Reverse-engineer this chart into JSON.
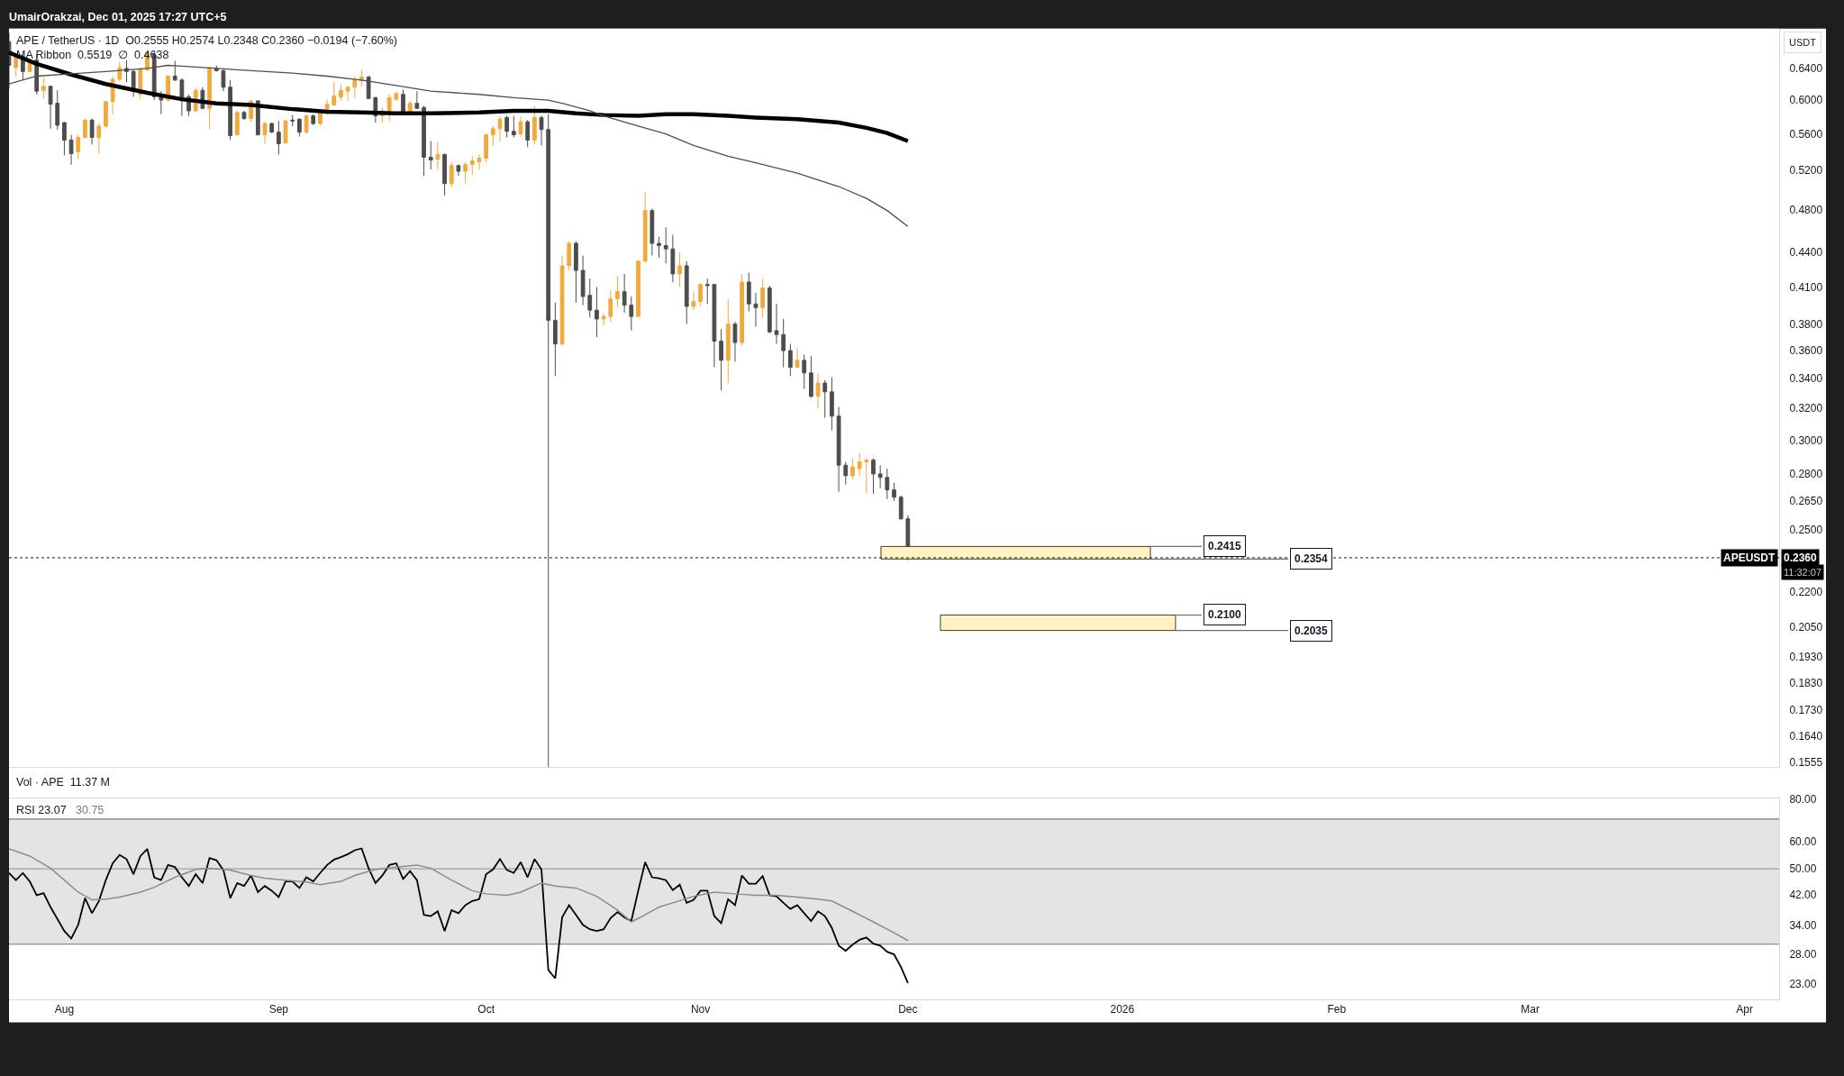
{
  "chart_data": [
    {
      "type": "candlestick",
      "title": "APE / TetherUS · 1D  O0.2555 H0.2574 L0.2348 C0.2360 −0.0194 (−7.60%)",
      "subtitle": "MA Ribbon  0.5519  ∅  0.4638",
      "ylabel": "USDT",
      "annotations": [
        "UmairOrakzai, Dec 01, 2025 17:27 UTC+5",
        "Vol · APE  11.37 M",
        {
          "text": "APEUSDT",
          "y": 0.236
        },
        "11:32:07"
      ],
      "x": [
        "2025-07-24",
        "2025-07-25",
        "2025-07-26",
        "2025-07-27",
        "2025-07-28",
        "2025-07-29",
        "2025-07-30",
        "2025-07-31",
        "2025-08-01",
        "2025-08-02",
        "2025-08-03",
        "2025-08-04",
        "2025-08-05",
        "2025-08-06",
        "2025-08-07",
        "2025-08-08",
        "2025-08-09",
        "2025-08-10",
        "2025-08-11",
        "2025-08-12",
        "2025-08-13",
        "2025-08-14",
        "2025-08-15",
        "2025-08-16",
        "2025-08-17",
        "2025-08-18",
        "2025-08-19",
        "2025-08-20",
        "2025-08-21",
        "2025-08-22",
        "2025-08-23",
        "2025-08-24",
        "2025-08-25",
        "2025-08-26",
        "2025-08-27",
        "2025-08-28",
        "2025-08-29",
        "2025-08-30",
        "2025-08-31",
        "2025-09-01",
        "2025-09-02",
        "2025-09-03",
        "2025-09-04",
        "2025-09-05",
        "2025-09-06",
        "2025-09-07",
        "2025-09-08",
        "2025-09-09",
        "2025-09-10",
        "2025-09-11",
        "2025-09-12",
        "2025-09-13",
        "2025-09-14",
        "2025-09-15",
        "2025-09-16",
        "2025-09-17",
        "2025-09-18",
        "2025-09-19",
        "2025-09-20",
        "2025-09-21",
        "2025-09-22",
        "2025-09-23",
        "2025-09-24",
        "2025-09-25",
        "2025-09-26",
        "2025-09-27",
        "2025-09-28",
        "2025-09-29",
        "2025-09-30",
        "2025-10-01",
        "2025-10-02",
        "2025-10-03",
        "2025-10-04",
        "2025-10-05",
        "2025-10-06",
        "2025-10-07",
        "2025-10-08",
        "2025-10-09",
        "2025-10-10",
        "2025-10-11",
        "2025-10-12",
        "2025-10-13",
        "2025-10-14",
        "2025-10-15",
        "2025-10-16",
        "2025-10-17",
        "2025-10-18",
        "2025-10-19",
        "2025-10-20",
        "2025-10-21",
        "2025-10-22",
        "2025-10-23",
        "2025-10-24",
        "2025-10-25",
        "2025-10-26",
        "2025-10-27",
        "2025-10-28",
        "2025-10-29",
        "2025-10-30",
        "2025-10-31",
        "2025-11-01",
        "2025-11-02",
        "2025-11-03",
        "2025-11-04",
        "2025-11-05",
        "2025-11-06",
        "2025-11-07",
        "2025-11-08",
        "2025-11-09",
        "2025-11-10",
        "2025-11-11",
        "2025-11-12",
        "2025-11-13",
        "2025-11-14",
        "2025-11-15",
        "2025-11-16",
        "2025-11-17",
        "2025-11-18",
        "2025-11-19",
        "2025-11-20",
        "2025-11-21",
        "2025-11-22",
        "2025-11-23",
        "2025-11-24",
        "2025-11-25",
        "2025-11-26",
        "2025-11-27",
        "2025-11-28",
        "2025-11-29",
        "2025-11-30",
        "2025-12-01"
      ],
      "ohlc": [
        [
          0.676,
          0.688,
          0.614,
          0.644
        ],
        [
          0.641,
          0.658,
          0.629,
          0.655
        ],
        [
          0.651,
          0.658,
          0.625,
          0.636
        ],
        [
          0.636,
          0.651,
          0.635,
          0.648
        ],
        [
          0.651,
          0.658,
          0.607,
          0.611
        ],
        [
          0.612,
          0.628,
          0.602,
          0.617
        ],
        [
          0.617,
          0.618,
          0.566,
          0.595
        ],
        [
          0.596,
          0.612,
          0.565,
          0.57
        ],
        [
          0.573,
          0.574,
          0.536,
          0.553
        ],
        [
          0.553,
          0.559,
          0.526,
          0.538
        ],
        [
          0.54,
          0.559,
          0.532,
          0.556
        ],
        [
          0.556,
          0.578,
          0.555,
          0.576
        ],
        [
          0.576,
          0.578,
          0.548,
          0.556
        ],
        [
          0.556,
          0.572,
          0.538,
          0.569
        ],
        [
          0.569,
          0.599,
          0.567,
          0.598
        ],
        [
          0.598,
          0.63,
          0.583,
          0.626
        ],
        [
          0.626,
          0.649,
          0.623,
          0.641
        ],
        [
          0.64,
          0.651,
          0.622,
          0.636
        ],
        [
          0.636,
          0.638,
          0.604,
          0.611
        ],
        [
          0.607,
          0.641,
          0.601,
          0.639
        ],
        [
          0.638,
          0.662,
          0.637,
          0.661
        ],
        [
          0.658,
          0.662,
          0.6,
          0.604
        ],
        [
          0.604,
          0.611,
          0.583,
          0.6
        ],
        [
          0.6,
          0.631,
          0.598,
          0.63
        ],
        [
          0.63,
          0.65,
          0.624,
          0.625
        ],
        [
          0.625,
          0.627,
          0.581,
          0.603
        ],
        [
          0.604,
          0.607,
          0.581,
          0.587
        ],
        [
          0.587,
          0.615,
          0.586,
          0.612
        ],
        [
          0.612,
          0.616,
          0.589,
          0.59
        ],
        [
          0.59,
          0.642,
          0.565,
          0.641
        ],
        [
          0.64,
          0.644,
          0.636,
          0.637
        ],
        [
          0.637,
          0.639,
          0.611,
          0.616
        ],
        [
          0.616,
          0.625,
          0.553,
          0.558
        ],
        [
          0.559,
          0.587,
          0.558,
          0.585
        ],
        [
          0.585,
          0.587,
          0.576,
          0.578
        ],
        [
          0.578,
          0.6,
          0.574,
          0.599
        ],
        [
          0.599,
          0.6,
          0.558,
          0.559
        ],
        [
          0.559,
          0.575,
          0.549,
          0.572
        ],
        [
          0.572,
          0.573,
          0.561,
          0.562
        ],
        [
          0.562,
          0.575,
          0.537,
          0.549
        ],
        [
          0.55,
          0.576,
          0.549,
          0.575
        ],
        [
          0.576,
          0.582,
          0.569,
          0.575
        ],
        [
          0.577,
          0.578,
          0.557,
          0.562
        ],
        [
          0.562,
          0.583,
          0.56,
          0.581
        ],
        [
          0.581,
          0.583,
          0.57,
          0.572
        ],
        [
          0.572,
          0.586,
          0.57,
          0.585
        ],
        [
          0.584,
          0.601,
          0.582,
          0.595
        ],
        [
          0.594,
          0.623,
          0.593,
          0.605
        ],
        [
          0.604,
          0.62,
          0.599,
          0.612
        ],
        [
          0.611,
          0.617,
          0.599,
          0.616
        ],
        [
          0.616,
          0.63,
          0.603,
          0.625
        ],
        [
          0.624,
          0.638,
          0.617,
          0.629
        ],
        [
          0.629,
          0.63,
          0.601,
          0.602
        ],
        [
          0.603,
          0.604,
          0.573,
          0.581
        ],
        [
          0.581,
          0.591,
          0.573,
          0.587
        ],
        [
          0.587,
          0.607,
          0.575,
          0.603
        ],
        [
          0.601,
          0.611,
          0.599,
          0.608
        ],
        [
          0.607,
          0.613,
          0.584,
          0.585
        ],
        [
          0.585,
          0.599,
          0.584,
          0.596
        ],
        [
          0.596,
          0.611,
          0.589,
          0.59
        ],
        [
          0.591,
          0.593,
          0.514,
          0.534
        ],
        [
          0.534,
          0.552,
          0.521,
          0.531
        ],
        [
          0.532,
          0.551,
          0.521,
          0.537
        ],
        [
          0.537,
          0.538,
          0.494,
          0.506
        ],
        [
          0.506,
          0.529,
          0.502,
          0.525
        ],
        [
          0.525,
          0.526,
          0.514,
          0.519
        ],
        [
          0.519,
          0.529,
          0.506,
          0.526
        ],
        [
          0.526,
          0.535,
          0.515,
          0.53
        ],
        [
          0.529,
          0.537,
          0.521,
          0.533
        ],
        [
          0.533,
          0.56,
          0.528,
          0.559
        ],
        [
          0.559,
          0.569,
          0.547,
          0.566
        ],
        [
          0.566,
          0.581,
          0.551,
          0.577
        ],
        [
          0.579,
          0.581,
          0.556,
          0.563
        ],
        [
          0.563,
          0.581,
          0.556,
          0.559
        ],
        [
          0.56,
          0.58,
          0.557,
          0.574
        ],
        [
          0.574,
          0.576,
          0.545,
          0.553
        ],
        [
          0.553,
          0.593,
          0.548,
          0.579
        ],
        [
          0.579,
          0.581,
          0.547,
          0.565
        ],
        [
          0.565,
          0.583,
          0.154,
          0.383
        ],
        [
          0.383,
          0.397,
          0.342,
          0.365
        ],
        [
          0.365,
          0.437,
          0.364,
          0.428
        ],
        [
          0.428,
          0.45,
          0.424,
          0.448
        ],
        [
          0.448,
          0.45,
          0.397,
          0.424
        ],
        [
          0.424,
          0.437,
          0.395,
          0.402
        ],
        [
          0.403,
          0.417,
          0.385,
          0.391
        ],
        [
          0.391,
          0.41,
          0.37,
          0.384
        ],
        [
          0.384,
          0.388,
          0.379,
          0.386
        ],
        [
          0.386,
          0.407,
          0.382,
          0.4
        ],
        [
          0.4,
          0.419,
          0.393,
          0.406
        ],
        [
          0.406,
          0.421,
          0.389,
          0.395
        ],
        [
          0.395,
          0.402,
          0.375,
          0.386
        ],
        [
          0.386,
          0.433,
          0.386,
          0.432
        ],
        [
          0.432,
          0.497,
          0.431,
          0.479
        ],
        [
          0.479,
          0.481,
          0.437,
          0.448
        ],
        [
          0.448,
          0.454,
          0.435,
          0.446
        ],
        [
          0.446,
          0.463,
          0.43,
          0.443
        ],
        [
          0.443,
          0.456,
          0.414,
          0.421
        ],
        [
          0.421,
          0.44,
          0.41,
          0.428
        ],
        [
          0.428,
          0.432,
          0.38,
          0.394
        ],
        [
          0.394,
          0.406,
          0.391,
          0.398
        ],
        [
          0.398,
          0.413,
          0.394,
          0.412
        ],
        [
          0.412,
          0.417,
          0.396,
          0.411
        ],
        [
          0.412,
          0.412,
          0.348,
          0.367
        ],
        [
          0.367,
          0.376,
          0.332,
          0.353
        ],
        [
          0.353,
          0.4,
          0.337,
          0.38
        ],
        [
          0.38,
          0.382,
          0.352,
          0.366
        ],
        [
          0.366,
          0.421,
          0.364,
          0.414
        ],
        [
          0.414,
          0.422,
          0.39,
          0.396
        ],
        [
          0.396,
          0.405,
          0.378,
          0.393
        ],
        [
          0.393,
          0.417,
          0.385,
          0.409
        ],
        [
          0.409,
          0.411,
          0.373,
          0.374
        ],
        [
          0.375,
          0.396,
          0.365,
          0.372
        ],
        [
          0.372,
          0.384,
          0.348,
          0.36
        ],
        [
          0.36,
          0.365,
          0.342,
          0.348
        ],
        [
          0.348,
          0.362,
          0.348,
          0.353
        ],
        [
          0.353,
          0.357,
          0.333,
          0.344
        ],
        [
          0.344,
          0.356,
          0.327,
          0.328
        ],
        [
          0.328,
          0.344,
          0.32,
          0.337
        ],
        [
          0.337,
          0.339,
          0.314,
          0.331
        ],
        [
          0.331,
          0.341,
          0.306,
          0.315
        ],
        [
          0.315,
          0.321,
          0.27,
          0.285
        ],
        [
          0.285,
          0.287,
          0.274,
          0.279
        ],
        [
          0.279,
          0.289,
          0.277,
          0.284
        ],
        [
          0.283,
          0.292,
          0.279,
          0.287
        ],
        [
          0.287,
          0.289,
          0.269,
          0.288
        ],
        [
          0.288,
          0.289,
          0.269,
          0.28
        ],
        [
          0.28,
          0.285,
          0.272,
          0.278
        ],
        [
          0.278,
          0.283,
          0.266,
          0.271
        ],
        [
          0.271,
          0.275,
          0.265,
          0.267
        ],
        [
          0.267,
          0.268,
          0.255,
          0.2555
        ],
        [
          0.2555,
          0.2574,
          0.2348,
          0.236
        ]
      ],
      "colors": [
        "#4d4d4d",
        "#f2a93b",
        "#4d4d4d",
        "#f2a93b",
        "#4d4d4d",
        "#f2a93b",
        "#4d4d4d",
        "#4d4d4d",
        "#4d4d4d",
        "#4d4d4d",
        "#f2a93b",
        "#f2a93b",
        "#4d4d4d",
        "#f2a93b",
        "#f2a93b",
        "#f2a93b",
        "#f2a93b",
        "#4d4d4d",
        "#4d4d4d",
        "#f2a93b",
        "#f2a93b",
        "#4d4d4d",
        "#4d4d4d",
        "#f2a93b",
        "#4d4d4d",
        "#4d4d4d",
        "#4d4d4d",
        "#f2a93b",
        "#4d4d4d",
        "#f2a93b",
        "#4d4d4d",
        "#4d4d4d",
        "#4d4d4d",
        "#f2a93b",
        "#4d4d4d",
        "#f2a93b",
        "#4d4d4d",
        "#f2a93b",
        "#4d4d4d",
        "#4d4d4d",
        "#f2a93b",
        "#4d4d4d",
        "#4d4d4d",
        "#f2a93b",
        "#4d4d4d",
        "#f2a93b",
        "#f2a93b",
        "#f2a93b",
        "#f2a93b",
        "#f2a93b",
        "#f2a93b",
        "#f2a93b",
        "#4d4d4d",
        "#4d4d4d",
        "#f2a93b",
        "#f2a93b",
        "#f2a93b",
        "#4d4d4d",
        "#f2a93b",
        "#4d4d4d",
        "#4d4d4d",
        "#4d4d4d",
        "#f2a93b",
        "#4d4d4d",
        "#f2a93b",
        "#4d4d4d",
        "#f2a93b",
        "#f2a93b",
        "#f2a93b",
        "#f2a93b",
        "#f2a93b",
        "#f2a93b",
        "#4d4d4d",
        "#4d4d4d",
        "#f2a93b",
        "#4d4d4d",
        "#f2a93b",
        "#4d4d4d",
        "#4d4d4d",
        "#4d4d4d",
        "#f2a93b",
        "#f2a93b",
        "#4d4d4d",
        "#4d4d4d",
        "#4d4d4d",
        "#4d4d4d",
        "#f2a93b",
        "#f2a93b",
        "#f2a93b",
        "#4d4d4d",
        "#4d4d4d",
        "#f2a93b",
        "#f2a93b",
        "#4d4d4d",
        "#4d4d4d",
        "#4d4d4d",
        "#4d4d4d",
        "#f2a93b",
        "#4d4d4d",
        "#f2a93b",
        "#f2a93b",
        "#4d4d4d",
        "#4d4d4d",
        "#4d4d4d",
        "#f2a93b",
        "#4d4d4d",
        "#f2a93b",
        "#4d4d4d",
        "#4d4d4d",
        "#f2a93b",
        "#4d4d4d",
        "#4d4d4d",
        "#4d4d4d",
        "#4d4d4d",
        "#f2a93b",
        "#4d4d4d",
        "#4d4d4d",
        "#f2a93b",
        "#4d4d4d",
        "#4d4d4d",
        "#4d4d4d",
        "#4d4d4d",
        "#f2a93b",
        "#f2a93b",
        "#f2a93b",
        "#4d4d4d",
        "#4d4d4d",
        "#4d4d4d",
        "#4d4d4d",
        "#4d4d4d",
        "#4d4d4d"
      ],
      "series": [
        {
          "type": "line",
          "color": "#000000",
          "x": [
            "2025-07-24",
            "2025-07-28",
            "2025-08-02",
            "2025-08-07",
            "2025-08-13",
            "2025-08-18",
            "2025-08-23",
            "2025-08-28",
            "2025-09-03",
            "2025-09-08",
            "2025-09-13",
            "2025-09-18",
            "2025-09-23",
            "2025-09-30",
            "2025-10-05",
            "2025-10-10",
            "2025-10-14",
            "2025-10-18",
            "2025-10-23",
            "2025-10-27",
            "2025-10-31",
            "2025-11-05",
            "2025-11-09",
            "2025-11-15",
            "2025-11-21",
            "2025-11-25",
            "2025-11-28",
            "2025-12-01"
          ],
          "values": [
            0.661,
            0.646,
            0.632,
            0.62,
            0.609,
            0.601,
            0.596,
            0.594,
            0.589,
            0.586,
            0.585,
            0.584,
            0.584,
            0.585,
            0.587,
            0.587,
            0.584,
            0.582,
            0.581,
            0.583,
            0.583,
            0.581,
            0.579,
            0.577,
            0.573,
            0.567,
            0.561,
            0.5519
          ]
        },
        {
          "type": "line",
          "color": "#4f4f4f",
          "x": [
            "2025-07-24",
            "2025-07-28",
            "2025-08-02",
            "2025-08-07",
            "2025-08-13",
            "2025-08-16",
            "2025-08-18",
            "2025-08-23",
            "2025-08-28",
            "2025-09-03",
            "2025-09-08",
            "2025-09-13",
            "2025-09-18",
            "2025-09-23",
            "2025-09-30",
            "2025-10-05",
            "2025-10-10",
            "2025-10-12",
            "2025-10-16",
            "2025-10-18",
            "2025-10-23",
            "2025-10-27",
            "2025-10-31",
            "2025-11-05",
            "2025-11-09",
            "2025-11-15",
            "2025-11-21",
            "2025-11-25",
            "2025-11-28",
            "2025-12-01"
          ],
          "values": [
            0.62,
            0.63,
            0.633,
            0.636,
            0.64,
            0.644,
            0.643,
            0.64,
            0.637,
            0.634,
            0.63,
            0.625,
            0.618,
            0.611,
            0.607,
            0.603,
            0.6,
            0.596,
            0.587,
            0.581,
            0.569,
            0.56,
            0.547,
            0.535,
            0.528,
            0.517,
            0.503,
            0.491,
            0.479,
            0.4638
          ]
        }
      ],
      "xlim": [
        "2025-07-24",
        "2026-04-06"
      ],
      "ylim": [
        0.154,
        0.694
      ],
      "yticks": [
        {
          "value": 0.64,
          "label": "0.6400"
        },
        {
          "value": 0.6,
          "label": "0.6000"
        },
        {
          "value": 0.56,
          "label": "0.5600"
        },
        {
          "value": 0.52,
          "label": "0.5200"
        },
        {
          "value": 0.48,
          "label": "0.4800"
        },
        {
          "value": 0.44,
          "label": "0.4400"
        },
        {
          "value": 0.41,
          "label": "0.4100"
        },
        {
          "value": 0.38,
          "label": "0.3800"
        },
        {
          "value": 0.36,
          "label": "0.3600"
        },
        {
          "value": 0.34,
          "label": "0.3400"
        },
        {
          "value": 0.32,
          "label": "0.3200"
        },
        {
          "value": 0.3,
          "label": "0.3000"
        },
        {
          "value": 0.28,
          "label": "0.2800"
        },
        {
          "value": 0.265,
          "label": "0.2650"
        },
        {
          "value": 0.25,
          "label": "0.2500"
        },
        {
          "value": 0.22,
          "label": "0.2200"
        },
        {
          "value": 0.205,
          "label": "0.2050"
        },
        {
          "value": 0.193,
          "label": "0.1930"
        },
        {
          "value": 0.183,
          "label": "0.1830"
        },
        {
          "value": 0.173,
          "label": "0.1730"
        },
        {
          "value": 0.164,
          "label": "0.1640"
        },
        {
          "value": 0.1555,
          "label": "0.1555"
        }
      ],
      "log": true,
      "tick_labels": "y",
      "ref_lines": [
        {
          "axis": "y",
          "value": 0.236,
          "label": "0.2360",
          "line_style": "dotted",
          "color": "#131722"
        },
        {
          "axis": "y",
          "value": 0.2415,
          "label": "0.2415",
          "color": "#6a6d78"
        },
        {
          "axis": "y",
          "value": 0.2354,
          "label": "0.2354",
          "color": "#6a6d78"
        },
        {
          "axis": "y",
          "value": 0.21,
          "label": "0.2100",
          "color": "#6a6d78"
        },
        {
          "axis": "y",
          "value": 0.2035,
          "label": "0.2035",
          "color": "#6a6d78"
        }
      ],
      "bands": [
        {
          "axis": "y",
          "from": 0.2354,
          "to": 0.2415,
          "color": "#fff3c4"
        },
        {
          "axis": "y",
          "from": 0.2035,
          "to": 0.21,
          "color": "#fff3c4"
        }
      ]
    },
    {
      "type": "line",
      "title": "RSI 23.07",
      "subtitle": "30.75",
      "x": [
        "2025-07-24",
        "2025-07-25",
        "2025-07-26",
        "2025-07-27",
        "2025-07-28",
        "2025-07-29",
        "2025-07-30",
        "2025-07-31",
        "2025-08-01",
        "2025-08-02",
        "2025-08-03",
        "2025-08-04",
        "2025-08-05",
        "2025-08-06",
        "2025-08-07",
        "2025-08-08",
        "2025-08-09",
        "2025-08-10",
        "2025-08-11",
        "2025-08-12",
        "2025-08-13",
        "2025-08-14",
        "2025-08-15",
        "2025-08-16",
        "2025-08-17",
        "2025-08-18",
        "2025-08-19",
        "2025-08-20",
        "2025-08-21",
        "2025-08-22",
        "2025-08-23",
        "2025-08-24",
        "2025-08-25",
        "2025-08-26",
        "2025-08-27",
        "2025-08-28",
        "2025-08-29",
        "2025-08-30",
        "2025-08-31",
        "2025-09-01",
        "2025-09-02",
        "2025-09-03",
        "2025-09-04",
        "2025-09-05",
        "2025-09-06",
        "2025-09-07",
        "2025-09-08",
        "2025-09-09",
        "2025-09-10",
        "2025-09-11",
        "2025-09-12",
        "2025-09-13",
        "2025-09-14",
        "2025-09-15",
        "2025-09-16",
        "2025-09-17",
        "2025-09-18",
        "2025-09-19",
        "2025-09-20",
        "2025-09-21",
        "2025-09-22",
        "2025-09-23",
        "2025-09-24",
        "2025-09-25",
        "2025-09-26",
        "2025-09-27",
        "2025-09-28",
        "2025-09-29",
        "2025-09-30",
        "2025-10-01",
        "2025-10-02",
        "2025-10-03",
        "2025-10-04",
        "2025-10-05",
        "2025-10-06",
        "2025-10-07",
        "2025-10-08",
        "2025-10-09",
        "2025-10-10",
        "2025-10-11",
        "2025-10-12",
        "2025-10-13",
        "2025-10-14",
        "2025-10-15",
        "2025-10-16",
        "2025-10-17",
        "2025-10-18",
        "2025-10-19",
        "2025-10-20",
        "2025-10-21",
        "2025-10-22",
        "2025-10-23",
        "2025-10-24",
        "2025-10-25",
        "2025-10-26",
        "2025-10-27",
        "2025-10-28",
        "2025-10-29",
        "2025-10-30",
        "2025-10-31",
        "2025-11-01",
        "2025-11-02",
        "2025-11-03",
        "2025-11-04",
        "2025-11-05",
        "2025-11-06",
        "2025-11-07",
        "2025-11-08",
        "2025-11-09",
        "2025-11-10",
        "2025-11-11",
        "2025-11-12",
        "2025-11-13",
        "2025-11-14",
        "2025-11-15",
        "2025-11-16",
        "2025-11-17",
        "2025-11-18",
        "2025-11-19",
        "2025-11-20",
        "2025-11-21",
        "2025-11-22",
        "2025-11-23",
        "2025-11-24",
        "2025-11-25",
        "2025-11-26",
        "2025-11-27",
        "2025-11-28",
        "2025-11-29",
        "2025-11-30",
        "2025-12-01"
      ],
      "series": [
        {
          "color": "#000000",
          "values": [
            48.6,
            46.3,
            48.6,
            45.9,
            41.8,
            42.4,
            38.6,
            35.6,
            32.8,
            31.2,
            34.2,
            41.0,
            37.0,
            40.2,
            46.3,
            51.9,
            54.9,
            53.4,
            48.2,
            54.5,
            57.2,
            47.2,
            46.3,
            51.3,
            50.6,
            47.2,
            44.5,
            48.2,
            45.4,
            53.8,
            53.0,
            49.6,
            41.0,
            45.4,
            44.5,
            47.8,
            42.7,
            44.5,
            43.1,
            41.3,
            45.9,
            45.9,
            43.9,
            47.2,
            45.9,
            48.6,
            51.3,
            53.2,
            54.1,
            55.2,
            56.7,
            57.4,
            50.2,
            45.4,
            47.8,
            51.3,
            51.9,
            46.7,
            49.2,
            46.3,
            36.6,
            36.3,
            37.5,
            32.8,
            37.8,
            37.0,
            39.1,
            40.2,
            40.7,
            48.2,
            49.8,
            53.4,
            49.6,
            48.6,
            52.3,
            47.2,
            53.4,
            49.8,
            25.2,
            23.8,
            36.0,
            39.1,
            36.6,
            34.2,
            33.2,
            32.8,
            33.2,
            35.8,
            37.3,
            36.0,
            35.1,
            43.1,
            52.3,
            47.2,
            46.9,
            46.3,
            43.3,
            44.9,
            39.7,
            40.5,
            43.1,
            43.1,
            36.3,
            34.6,
            40.7,
            39.1,
            47.8,
            45.2,
            45.2,
            47.6,
            41.8,
            41.5,
            39.7,
            38.1,
            39.1,
            37.0,
            35.1,
            37.5,
            36.3,
            33.5,
            29.7,
            28.7,
            29.9,
            30.9,
            31.4,
            30.1,
            29.7,
            28.5,
            28.0,
            25.7,
            23.07
          ]
        },
        {
          "color": "#8c8c8c",
          "x": [
            "2025-07-24",
            "2025-07-27",
            "2025-07-30",
            "2025-08-01",
            "2025-08-03",
            "2025-08-05",
            "2025-08-07",
            "2025-08-09",
            "2025-08-12",
            "2025-08-14",
            "2025-08-17",
            "2025-08-20",
            "2025-08-22",
            "2025-08-25",
            "2025-08-28",
            "2025-08-30",
            "2025-09-02",
            "2025-09-05",
            "2025-09-07",
            "2025-09-10",
            "2025-09-12",
            "2025-09-15",
            "2025-09-18",
            "2025-09-21",
            "2025-09-23",
            "2025-09-26",
            "2025-09-29",
            "2025-10-01",
            "2025-10-04",
            "2025-10-06",
            "2025-10-09",
            "2025-10-11",
            "2025-10-14",
            "2025-10-17",
            "2025-10-20",
            "2025-10-22",
            "2025-10-24",
            "2025-10-26",
            "2025-10-28",
            "2025-10-31",
            "2025-11-03",
            "2025-11-06",
            "2025-11-09",
            "2025-11-12",
            "2025-11-15",
            "2025-11-18",
            "2025-11-20",
            "2025-11-23",
            "2025-11-26",
            "2025-11-29",
            "2025-12-01"
          ],
          "values": [
            57.2,
            54.5,
            50.2,
            46.3,
            42.7,
            40.5,
            40.7,
            41.3,
            42.7,
            44.1,
            47.2,
            49.8,
            50.2,
            49.6,
            47.8,
            46.9,
            46.3,
            45.7,
            44.9,
            45.9,
            47.8,
            49.8,
            50.6,
            51.3,
            50.2,
            46.3,
            43.1,
            42.2,
            41.8,
            42.7,
            45.4,
            44.5,
            43.9,
            41.5,
            37.8,
            34.9,
            36.6,
            38.6,
            39.7,
            41.5,
            42.7,
            42.2,
            41.8,
            41.8,
            41.3,
            40.7,
            40.2,
            37.5,
            34.9,
            32.4,
            30.75
          ]
        }
      ],
      "xlim": [
        "2025-07-24",
        "2026-04-06"
      ],
      "xticks": [
        {
          "value": "2025-08-01",
          "label": "Aug"
        },
        {
          "value": "2025-09-01",
          "label": "Sep"
        },
        {
          "value": "2025-10-01",
          "label": "Oct"
        },
        {
          "value": "2025-11-01",
          "label": "Nov"
        },
        {
          "value": "2025-12-01",
          "label": "Dec"
        },
        {
          "value": "2026-01-01",
          "label": "2026"
        },
        {
          "value": "2026-02-01",
          "label": "Feb"
        },
        {
          "value": "2026-03-01",
          "label": "Mar"
        },
        {
          "value": "2026-04-01",
          "label": "Apr"
        }
      ],
      "ylim": [
        20.7,
        80.5
      ],
      "yticks": [
        {
          "value": 80,
          "label": "80.00"
        },
        {
          "value": 60,
          "label": "60.00"
        },
        {
          "value": 50,
          "label": "50.00"
        },
        {
          "value": 42,
          "label": "42.00"
        },
        {
          "value": 34,
          "label": "34.00"
        },
        {
          "value": 28,
          "label": "28.00"
        },
        {
          "value": 23,
          "label": "23.00"
        }
      ],
      "log": true,
      "ref_lines": [
        {
          "axis": "y",
          "value": 70,
          "color": "#787878"
        },
        {
          "axis": "y",
          "value": 50,
          "color": "#a0a0a0"
        },
        {
          "axis": "y",
          "value": 30,
          "color": "#787878"
        }
      ],
      "bands": [
        {
          "axis": "y",
          "from": 30,
          "to": 70,
          "color": "#e4e4e4"
        }
      ]
    }
  ]
}
